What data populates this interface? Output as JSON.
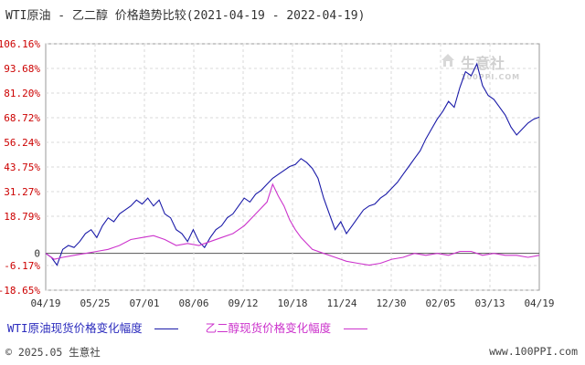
{
  "title": "WTI原油 - 乙二醇 价格趋势比较(2021-04-19 - 2022-04-19)",
  "watermark": {
    "name": "生意社",
    "url": "100PPI.COM"
  },
  "footer": {
    "left": "© 2025.05 生意社",
    "right": "www.100PPI.com"
  },
  "colors": {
    "wti": "#1a1aa8",
    "glycol": "#cc33cc",
    "axis_red": "#cc0000",
    "grid": "#d9d9d9"
  },
  "chart_data": {
    "type": "line",
    "ylim": [
      -18.65,
      106.16
    ],
    "y_ticks": [
      {
        "value": 106.16,
        "label": "106.16%"
      },
      {
        "value": 93.68,
        "label": "93.68%"
      },
      {
        "value": 81.2,
        "label": "81.20%"
      },
      {
        "value": 68.72,
        "label": "68.72%"
      },
      {
        "value": 56.24,
        "label": "56.24%"
      },
      {
        "value": 43.75,
        "label": "43.75%"
      },
      {
        "value": 31.27,
        "label": "31.27%"
      },
      {
        "value": 18.79,
        "label": "18.79%"
      },
      {
        "value": 0,
        "label": "0"
      },
      {
        "value": -6.17,
        "label": "-6.17%"
      },
      {
        "value": -18.65,
        "label": "-18.65%"
      }
    ],
    "x_ticks": [
      "04/19",
      "05/25",
      "07/01",
      "08/06",
      "09/12",
      "10/18",
      "11/24",
      "12/30",
      "02/05",
      "03/13",
      "04/19"
    ],
    "grid": true,
    "legend_position": "bottom",
    "series": [
      {
        "name": "WTI原油现货价格变化幅度",
        "points": [
          [
            0,
            0
          ],
          [
            2,
            -2
          ],
          [
            4,
            -6
          ],
          [
            6,
            2
          ],
          [
            8,
            4
          ],
          [
            10,
            3
          ],
          [
            12,
            6
          ],
          [
            14,
            10
          ],
          [
            16,
            12
          ],
          [
            18,
            8
          ],
          [
            20,
            14
          ],
          [
            22,
            18
          ],
          [
            24,
            16
          ],
          [
            26,
            20
          ],
          [
            28,
            22
          ],
          [
            30,
            24
          ],
          [
            32,
            27
          ],
          [
            34,
            25
          ],
          [
            36,
            28
          ],
          [
            38,
            24
          ],
          [
            40,
            27
          ],
          [
            42,
            20
          ],
          [
            44,
            18
          ],
          [
            46,
            12
          ],
          [
            48,
            10
          ],
          [
            50,
            6
          ],
          [
            52,
            12
          ],
          [
            54,
            6
          ],
          [
            56,
            3
          ],
          [
            58,
            8
          ],
          [
            60,
            12
          ],
          [
            62,
            14
          ],
          [
            64,
            18
          ],
          [
            66,
            20
          ],
          [
            68,
            24
          ],
          [
            70,
            28
          ],
          [
            72,
            26
          ],
          [
            74,
            30
          ],
          [
            76,
            32
          ],
          [
            78,
            35
          ],
          [
            80,
            38
          ],
          [
            82,
            40
          ],
          [
            84,
            42
          ],
          [
            86,
            44
          ],
          [
            88,
            45
          ],
          [
            90,
            48
          ],
          [
            92,
            46
          ],
          [
            94,
            43
          ],
          [
            96,
            38
          ],
          [
            98,
            28
          ],
          [
            100,
            20
          ],
          [
            102,
            12
          ],
          [
            104,
            16
          ],
          [
            106,
            10
          ],
          [
            108,
            14
          ],
          [
            110,
            18
          ],
          [
            112,
            22
          ],
          [
            114,
            24
          ],
          [
            116,
            25
          ],
          [
            118,
            28
          ],
          [
            120,
            30
          ],
          [
            122,
            33
          ],
          [
            124,
            36
          ],
          [
            126,
            40
          ],
          [
            128,
            44
          ],
          [
            130,
            48
          ],
          [
            132,
            52
          ],
          [
            134,
            58
          ],
          [
            136,
            63
          ],
          [
            138,
            68
          ],
          [
            140,
            72
          ],
          [
            142,
            77
          ],
          [
            144,
            74
          ],
          [
            146,
            84
          ],
          [
            148,
            92
          ],
          [
            150,
            90
          ],
          [
            152,
            96
          ],
          [
            154,
            85
          ],
          [
            156,
            80
          ],
          [
            158,
            78
          ],
          [
            160,
            74
          ],
          [
            162,
            70
          ],
          [
            164,
            64
          ],
          [
            166,
            60
          ],
          [
            168,
            63
          ],
          [
            170,
            66
          ],
          [
            172,
            68
          ],
          [
            174,
            69
          ]
        ],
        "color_key": "wti"
      },
      {
        "name": "乙二醇现货价格变化幅度",
        "points": [
          [
            0,
            0
          ],
          [
            3,
            -3
          ],
          [
            6,
            -2
          ],
          [
            10,
            -1
          ],
          [
            14,
            0
          ],
          [
            18,
            1
          ],
          [
            22,
            2
          ],
          [
            26,
            4
          ],
          [
            30,
            7
          ],
          [
            34,
            8
          ],
          [
            38,
            9
          ],
          [
            42,
            7
          ],
          [
            46,
            4
          ],
          [
            50,
            5
          ],
          [
            54,
            4
          ],
          [
            58,
            6
          ],
          [
            62,
            8
          ],
          [
            66,
            10
          ],
          [
            70,
            14
          ],
          [
            74,
            20
          ],
          [
            78,
            26
          ],
          [
            80,
            35
          ],
          [
            82,
            29
          ],
          [
            84,
            24
          ],
          [
            86,
            17
          ],
          [
            88,
            12
          ],
          [
            90,
            8
          ],
          [
            92,
            5
          ],
          [
            94,
            2
          ],
          [
            98,
            0
          ],
          [
            102,
            -2
          ],
          [
            106,
            -4
          ],
          [
            110,
            -5
          ],
          [
            114,
            -6
          ],
          [
            118,
            -5
          ],
          [
            122,
            -3
          ],
          [
            126,
            -2
          ],
          [
            130,
            0
          ],
          [
            134,
            -1
          ],
          [
            138,
            0
          ],
          [
            142,
            -1
          ],
          [
            146,
            1
          ],
          [
            150,
            1
          ],
          [
            154,
            -1
          ],
          [
            158,
            0
          ],
          [
            162,
            -1
          ],
          [
            166,
            -1
          ],
          [
            170,
            -2
          ],
          [
            174,
            -1
          ]
        ],
        "color_key": "glycol"
      }
    ]
  }
}
